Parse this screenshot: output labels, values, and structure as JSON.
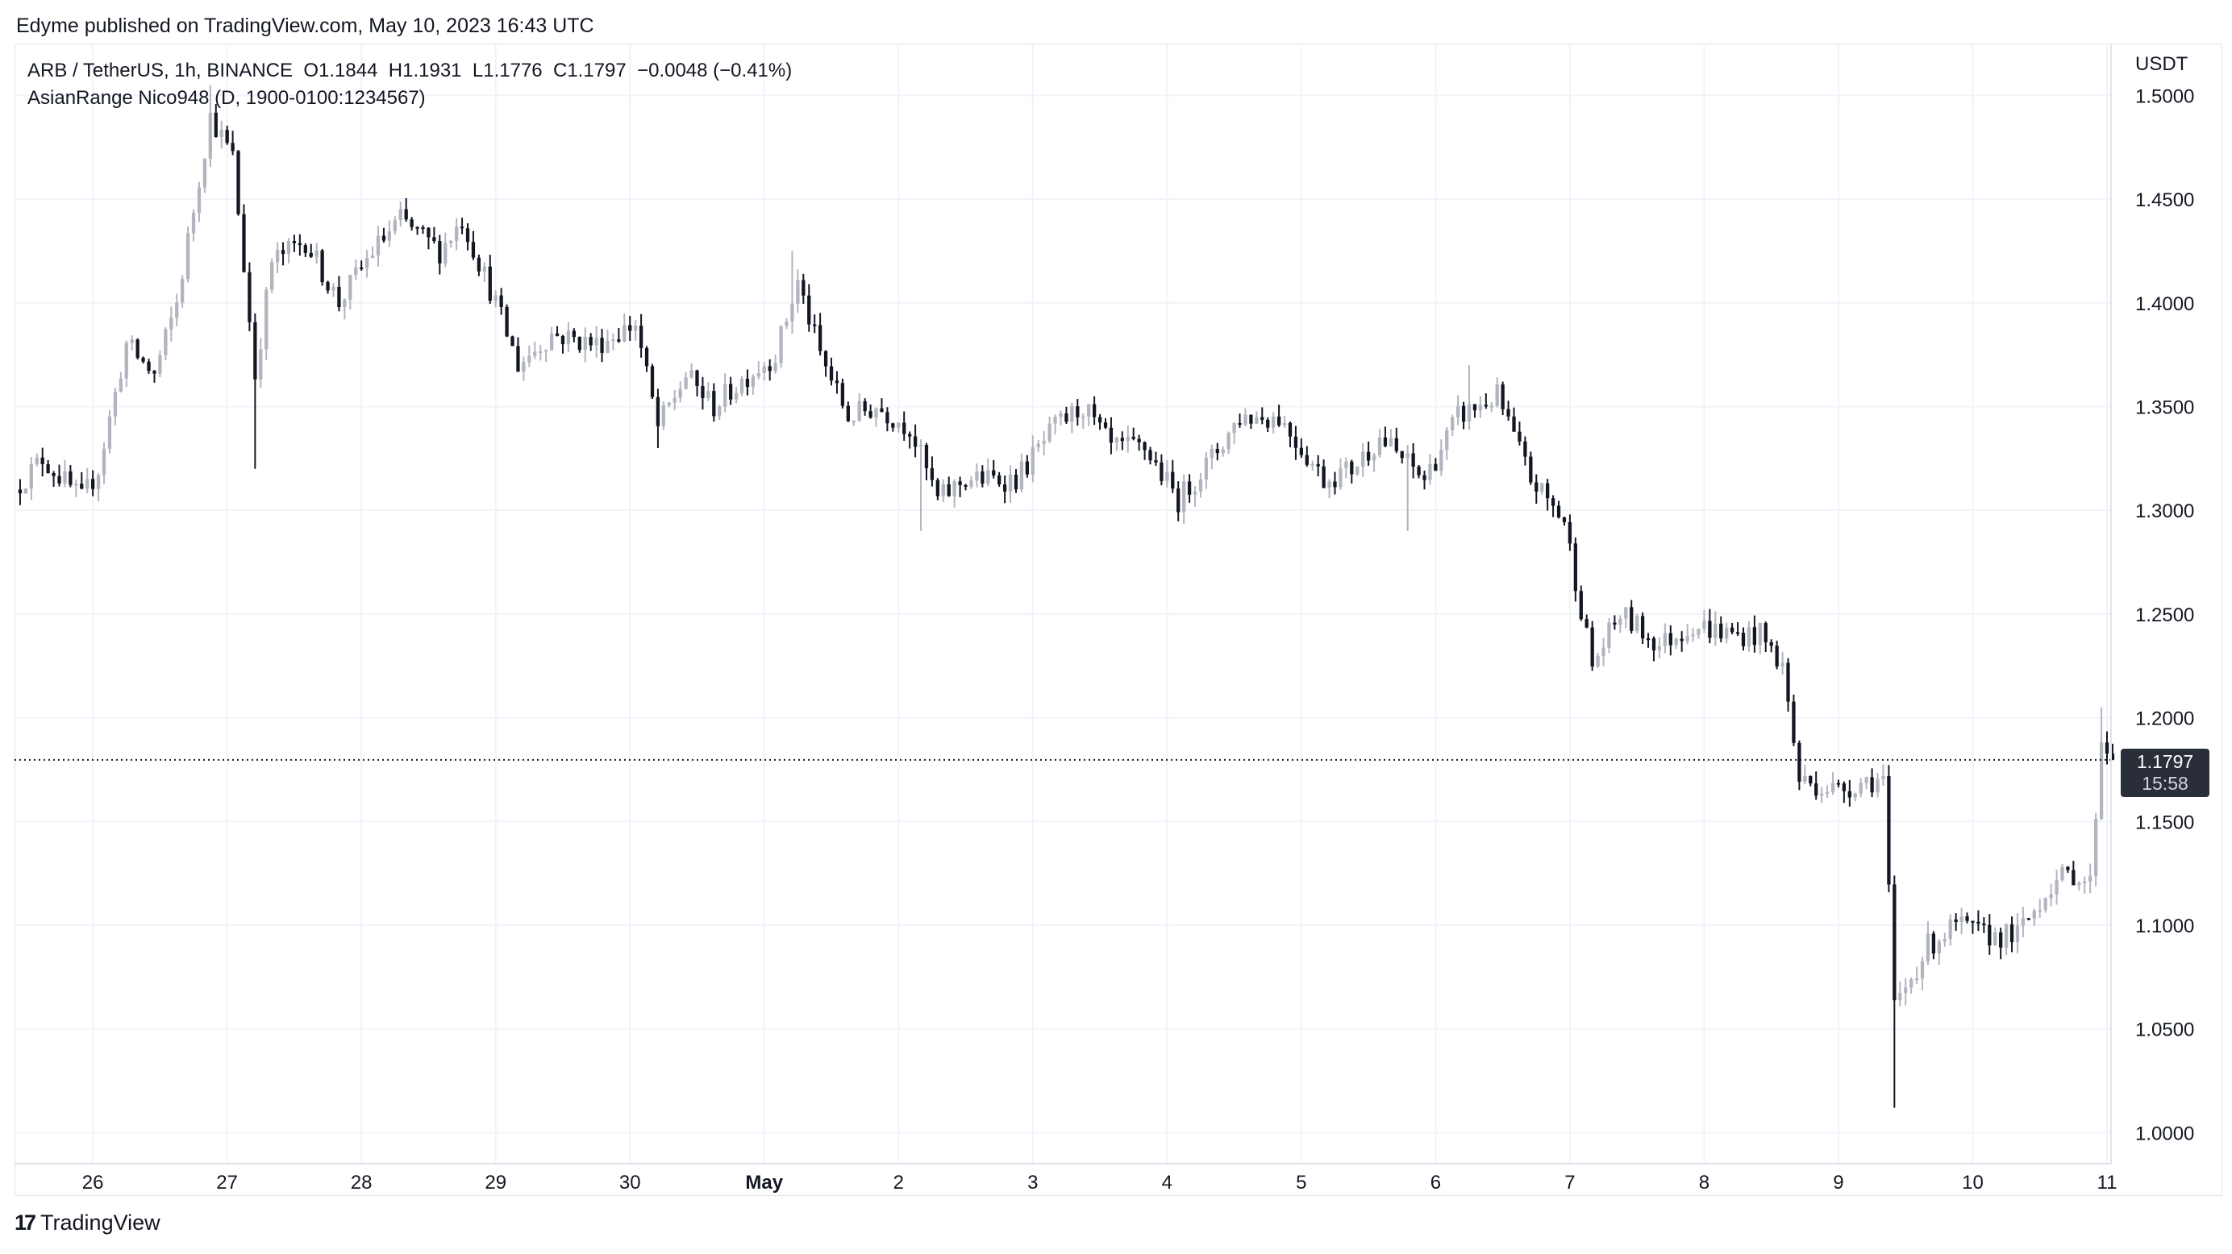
{
  "header": {
    "published": "Edyme published on TradingView.com, May 10, 2023 16:43 UTC"
  },
  "legend": {
    "symbol": "ARB / TetherUS, 1h, BINANCE",
    "open_label": "O",
    "open": "1.1844",
    "high_label": "H",
    "high": "1.1931",
    "low_label": "L",
    "low": "1.1776",
    "close_label": "C",
    "close": "1.1797",
    "change": "−0.0048 (−0.41%)",
    "indicator": "AsianRange Nico948 (D, 1900-0100:1234567)"
  },
  "axis": {
    "currency": "USDT"
  },
  "last_price": {
    "value": "1.1797",
    "countdown": "15:58"
  },
  "footer": {
    "logo_mark": "17",
    "brand": "TradingView"
  },
  "colors": {
    "up": "#b2b5be",
    "down": "#131722",
    "grid": "#f0f3fa",
    "price_line": "#131722"
  },
  "chart_data": {
    "type": "candlestick",
    "timeframe": "1h",
    "x_ticks": [
      "26",
      "27",
      "28",
      "29",
      "30",
      "May",
      "2",
      "3",
      "4",
      "5",
      "6",
      "7",
      "8",
      "9",
      "10",
      "11"
    ],
    "x_tick_bold": [
      "May"
    ],
    "y_ticks": [
      "1.5000",
      "1.4500",
      "1.4000",
      "1.3500",
      "1.3000",
      "1.2500",
      "1.2000",
      "1.1500",
      "1.1000",
      "1.0500",
      "1.0000"
    ],
    "ylim": [
      0.985,
      1.525
    ],
    "x_range_days": [
      "2023-04-25T10:00",
      "2023-05-11T00:00"
    ],
    "last_close": 1.1797,
    "path_anchors": [
      [
        "2023-04-25T10:00",
        1.31
      ],
      [
        "2023-04-25T15:00",
        1.325
      ],
      [
        "2023-04-25T22:00",
        1.305
      ],
      [
        "2023-04-26T01:00",
        1.32
      ],
      [
        "2023-04-26T06:00",
        1.38
      ],
      [
        "2023-04-26T11:00",
        1.365
      ],
      [
        "2023-04-26T15:00",
        1.4
      ],
      [
        "2023-04-26T21:00",
        1.49
      ],
      [
        "2023-04-27T01:00",
        1.47
      ],
      [
        "2023-04-27T05:00",
        1.365
      ],
      [
        "2023-04-27T08:00",
        1.42
      ],
      [
        "2023-04-27T14:00",
        1.43
      ],
      [
        "2023-04-27T20:00",
        1.4
      ],
      [
        "2023-04-28T02:00",
        1.425
      ],
      [
        "2023-04-28T07:00",
        1.44
      ],
      [
        "2023-04-28T14:00",
        1.425
      ],
      [
        "2023-04-28T18:00",
        1.44
      ],
      [
        "2023-04-29T00:00",
        1.4
      ],
      [
        "2023-04-29T04:00",
        1.37
      ],
      [
        "2023-04-29T10:00",
        1.385
      ],
      [
        "2023-04-29T18:00",
        1.38
      ],
      [
        "2023-04-30T01:00",
        1.39
      ],
      [
        "2023-04-30T05:00",
        1.34
      ],
      [
        "2023-04-30T10:00",
        1.365
      ],
      [
        "2023-04-30T15:00",
        1.35
      ],
      [
        "2023-04-30T21:00",
        1.365
      ],
      [
        "2023-05-01T02:00",
        1.375
      ],
      [
        "2023-05-01T06:00",
        1.41
      ],
      [
        "2023-05-01T10:00",
        1.375
      ],
      [
        "2023-05-01T15:00",
        1.345
      ],
      [
        "2023-05-01T20:00",
        1.35
      ],
      [
        "2023-05-02T02:00",
        1.34
      ],
      [
        "2023-05-02T07:00",
        1.305
      ],
      [
        "2023-05-02T12:00",
        1.315
      ],
      [
        "2023-05-02T21:00",
        1.315
      ],
      [
        "2023-05-03T04:00",
        1.34
      ],
      [
        "2023-05-03T09:00",
        1.35
      ],
      [
        "2023-05-03T14:00",
        1.33
      ],
      [
        "2023-05-03T20:00",
        1.33
      ],
      [
        "2023-05-04T02:00",
        1.305
      ],
      [
        "2023-05-04T08:00",
        1.325
      ],
      [
        "2023-05-04T13:00",
        1.345
      ],
      [
        "2023-05-04T20:00",
        1.345
      ],
      [
        "2023-05-05T00:00",
        1.33
      ],
      [
        "2023-05-05T04:00",
        1.315
      ],
      [
        "2023-05-05T09:00",
        1.32
      ],
      [
        "2023-05-05T14:00",
        1.335
      ],
      [
        "2023-05-05T22:00",
        1.315
      ],
      [
        "2023-05-06T04:00",
        1.345
      ],
      [
        "2023-05-06T11:00",
        1.355
      ],
      [
        "2023-05-06T17:00",
        1.315
      ],
      [
        "2023-05-06T23:00",
        1.295
      ],
      [
        "2023-05-07T04:00",
        1.225
      ],
      [
        "2023-05-07T09:00",
        1.25
      ],
      [
        "2023-05-07T16:00",
        1.235
      ],
      [
        "2023-05-07T22:00",
        1.245
      ],
      [
        "2023-05-08T05:00",
        1.24
      ],
      [
        "2023-05-08T10:00",
        1.24
      ],
      [
        "2023-05-08T14:00",
        1.225
      ],
      [
        "2023-05-08T17:00",
        1.17
      ],
      [
        "2023-05-09T00:00",
        1.165
      ],
      [
        "2023-05-09T05:00",
        1.17
      ],
      [
        "2023-05-09T08:00",
        1.17
      ],
      [
        "2023-05-09T10:00",
        1.06
      ],
      [
        "2023-05-09T16:00",
        1.09
      ],
      [
        "2023-05-09T21:00",
        1.1
      ],
      [
        "2023-05-10T02:00",
        1.095
      ],
      [
        "2023-05-10T08:00",
        1.095
      ],
      [
        "2023-05-10T14:00",
        1.12
      ],
      [
        "2023-05-10T18:00",
        1.125
      ],
      [
        "2023-05-10T21:00",
        1.12
      ],
      [
        "2023-05-10T23:00",
        1.19
      ],
      [
        "2023-05-11T01:00",
        1.18
      ]
    ],
    "spikes": [
      {
        "time": "2023-04-26T21:00",
        "high": 1.505
      },
      {
        "time": "2023-04-27T05:00",
        "low": 1.32
      },
      {
        "time": "2023-04-30T05:00",
        "low": 1.33
      },
      {
        "time": "2023-05-01T05:00",
        "high": 1.425
      },
      {
        "time": "2023-05-02T04:00",
        "low": 1.29
      },
      {
        "time": "2023-05-05T19:00",
        "low": 1.29
      },
      {
        "time": "2023-05-06T06:00",
        "high": 1.37
      },
      {
        "time": "2023-05-09T10:00",
        "low": 1.012
      },
      {
        "time": "2023-05-10T23:00",
        "high": 1.205
      }
    ]
  }
}
